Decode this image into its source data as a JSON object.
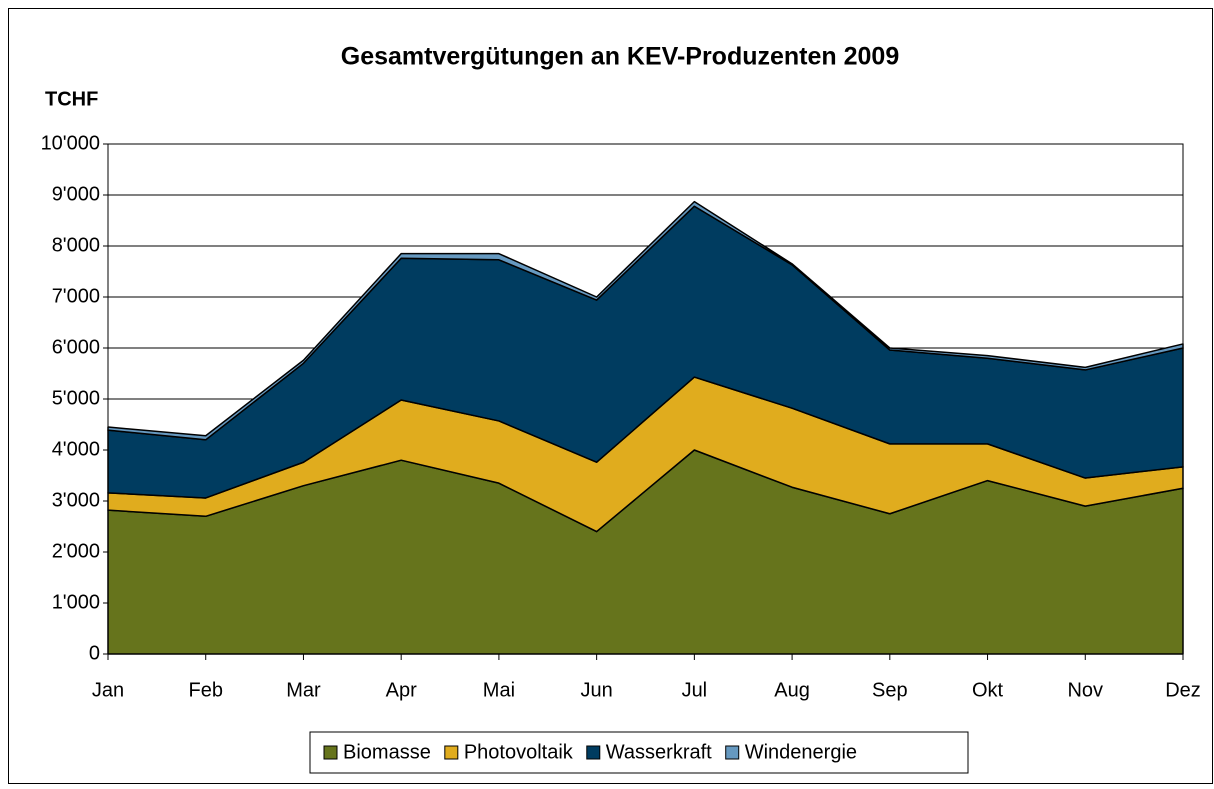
{
  "chart_data": {
    "type": "stacked_area",
    "title": "Gesamtvergütungen an KEV-Produzenten 2009",
    "y_label": "TCHF",
    "categories": [
      "Jan",
      "Feb",
      "Mar",
      "Apr",
      "Mai",
      "Jun",
      "Jul",
      "Aug",
      "Sep",
      "Okt",
      "Nov",
      "Dez"
    ],
    "series": [
      {
        "name": "Biomasse",
        "color": "#66741c",
        "values": [
          2820,
          2700,
          3300,
          3800,
          3350,
          2400,
          4000,
          3270,
          2750,
          3400,
          2900,
          3250
        ]
      },
      {
        "name": "Photovoltaik",
        "color": "#e0ac1e",
        "values": [
          340,
          360,
          460,
          1180,
          1220,
          1360,
          1430,
          1550,
          1370,
          720,
          550,
          420
        ]
      },
      {
        "name": "Wasserkraft",
        "color": "#003c60",
        "values": [
          1230,
          1140,
          1940,
          2780,
          3160,
          3180,
          3350,
          2810,
          1840,
          1680,
          2120,
          2330
        ]
      },
      {
        "name": "Windenergie",
        "color": "#6699c0",
        "values": [
          60,
          80,
          60,
          90,
          120,
          60,
          90,
          20,
          40,
          50,
          50,
          80
        ]
      }
    ],
    "ylim": [
      0,
      10000
    ],
    "yticks": [
      0,
      {
        "value": 1000,
        "label": "1'000"
      },
      {
        "value": 2000,
        "label": "2'000"
      },
      {
        "value": 3000,
        "label": "3'000"
      },
      {
        "value": 4000,
        "label": "4'000"
      },
      {
        "value": 5000,
        "label": "5'000"
      },
      {
        "value": 6000,
        "label": "6'000"
      },
      {
        "value": 7000,
        "label": "7'000"
      },
      {
        "value": 8000,
        "label": "8'000"
      },
      {
        "value": 9000,
        "label": "9'000"
      },
      {
        "value": 10000,
        "label": "10'000"
      }
    ],
    "grid": true,
    "legend": "bottom"
  }
}
